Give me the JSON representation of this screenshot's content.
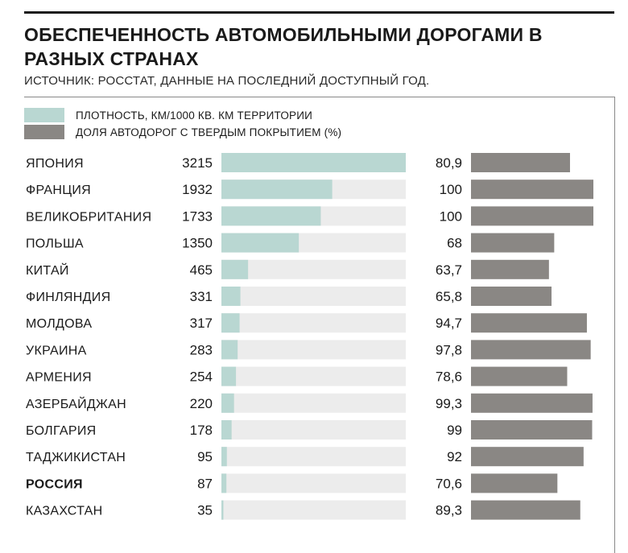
{
  "header": {
    "title": "ОБЕСПЕЧЕННОСТЬ АВТОМОБИЛЬНЫМИ ДОРОГАМИ В РАЗНЫХ СТРАНАХ",
    "source": "ИСТОЧНИК: РОССТАТ, ДАННЫЕ НА ПОСЛЕДНИЙ ДОСТУПНЫЙ ГОД."
  },
  "legend": [
    {
      "label": "ПЛОТНОСТЬ, КМ/1000 КВ. КМ ТЕРРИТОРИИ",
      "color": "#b9d7d2"
    },
    {
      "label": "ДОЛЯ АВТОДОРОГ С ТВЕРДЫМ ПОКРЫТИЕМ (%)",
      "color": "#8a8784"
    }
  ],
  "colors": {
    "density_bar": "#b9d7d2",
    "density_track": "#ececec",
    "paved_bar": "#8a8784"
  },
  "chart_data": {
    "type": "bar",
    "title": "ОБЕСПЕЧЕННОСТЬ АВТОМОБИЛЬНЫМИ ДОРОГАМИ В РАЗНЫХ СТРАНАХ",
    "categories": [
      "ЯПОНИЯ",
      "ФРАНЦИЯ",
      "ВЕЛИКОБРИТАНИЯ",
      "ПОЛЬША",
      "КИТАЙ",
      "ФИНЛЯНДИЯ",
      "МОЛДОВА",
      "УКРАИНА",
      "АРМЕНИЯ",
      "АЗЕРБАЙДЖАН",
      "БОЛГАРИЯ",
      "ТАДЖИКИСТАН",
      "РОССИЯ",
      "КАЗАХСТАН"
    ],
    "highlight": "РОССИЯ",
    "series": [
      {
        "name": "ПЛОТНОСТЬ, КМ/1000 КВ. КМ ТЕРРИТОРИИ",
        "values": [
          3215,
          1932,
          1733,
          1350,
          465,
          331,
          317,
          283,
          254,
          220,
          178,
          95,
          87,
          35
        ],
        "labels": [
          "3215",
          "1932",
          "1733",
          "1350",
          "465",
          "331",
          "317",
          "283",
          "254",
          "220",
          "178",
          "95",
          "87",
          "35"
        ],
        "max": 3215
      },
      {
        "name": "ДОЛЯ АВТОДОРОГ С ТВЕРДЫМ ПОКРЫТИЕМ (%)",
        "values": [
          80.9,
          100,
          100,
          68,
          63.7,
          65.8,
          94.7,
          97.8,
          78.6,
          99.3,
          99,
          92,
          70.6,
          89.3
        ],
        "labels": [
          "80,9",
          "100",
          "100",
          "68",
          "63,7",
          "65,8",
          "94,7",
          "97,8",
          "78,6",
          "99,3",
          "99",
          "92",
          "70,6",
          "89,3"
        ],
        "max": 100
      }
    ]
  }
}
